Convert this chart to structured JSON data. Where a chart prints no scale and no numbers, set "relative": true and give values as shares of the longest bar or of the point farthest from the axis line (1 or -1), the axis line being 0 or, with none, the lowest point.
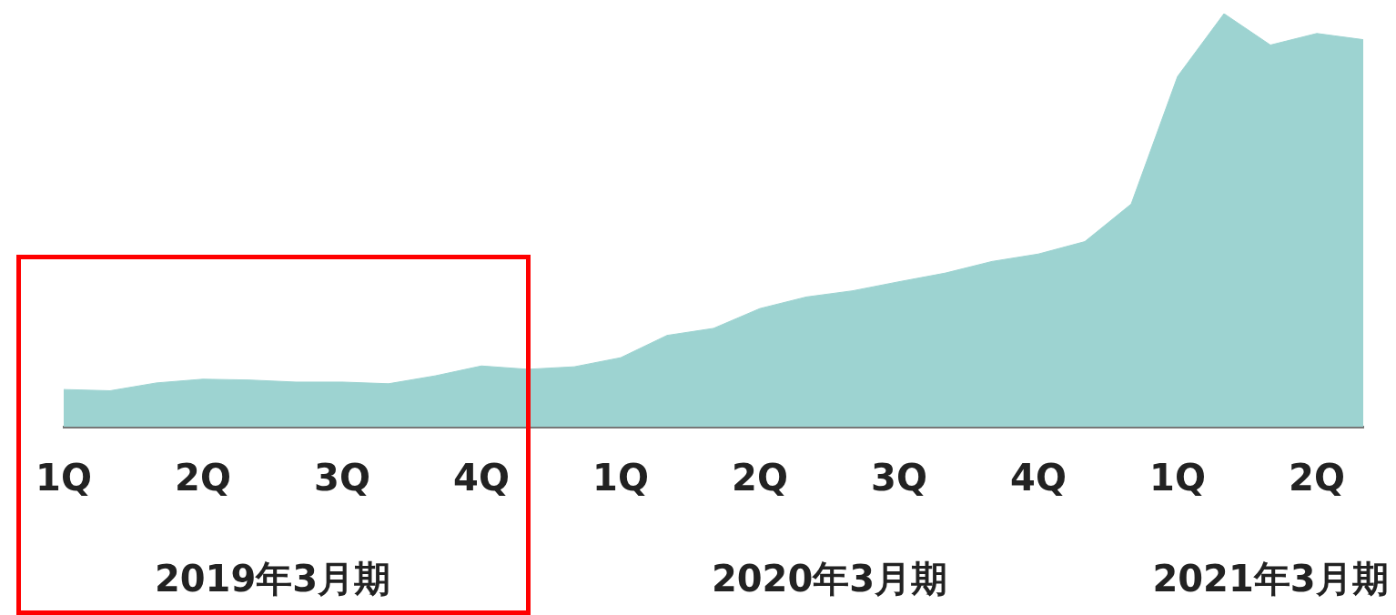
{
  "chart_data": {
    "type": "area",
    "relative": true,
    "color": "#9dd3d1",
    "categories": [
      "1Q",
      null,
      null,
      "2Q",
      null,
      null,
      "3Q",
      null,
      null,
      "4Q",
      null,
      null,
      "1Q",
      null,
      null,
      "2Q",
      null,
      null,
      "3Q",
      null,
      null,
      "4Q",
      null,
      null,
      "1Q",
      null,
      null,
      "2Q",
      null
    ],
    "values": [
      0.09,
      0.087,
      0.106,
      0.115,
      0.113,
      0.108,
      0.108,
      0.104,
      0.123,
      0.147,
      0.139,
      0.145,
      0.167,
      0.221,
      0.238,
      0.286,
      0.314,
      0.329,
      0.351,
      0.372,
      0.4,
      0.418,
      0.448,
      0.539,
      0.848,
      1,
      0.924,
      0.952,
      0.937
    ],
    "annotations": [
      "2019年3月期",
      "2020年3月期",
      "2021年3月期"
    ]
  }
}
